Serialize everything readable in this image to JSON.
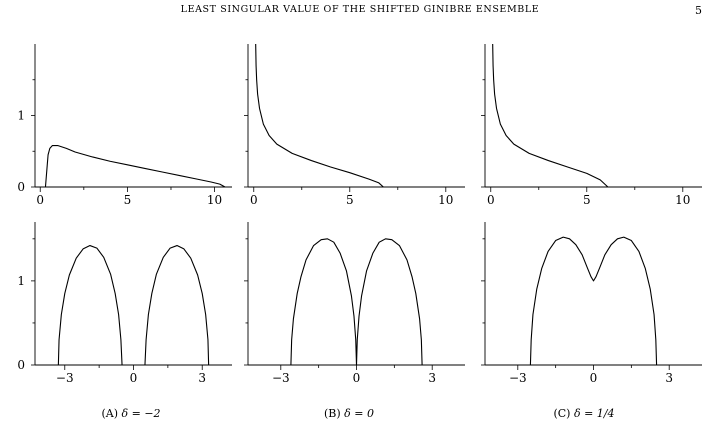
{
  "header": {
    "title": "LEAST SINGULAR VALUE OF THE SHIFTED GINIBRE ENSEMBLE",
    "page_number": "5"
  },
  "panels": [
    {
      "label": "(A)",
      "delta_expr": "δ = −2"
    },
    {
      "label": "(B)",
      "delta_expr": "δ = 0"
    },
    {
      "label": "(C)",
      "delta_expr": "δ = 1/4"
    }
  ],
  "chart_data": [
    {
      "type": "line",
      "row": "top",
      "panel": "A",
      "xlim": [
        -0.3,
        11
      ],
      "ylim": [
        0,
        2
      ],
      "xticks": [
        0,
        5,
        10
      ],
      "yticks": [
        0,
        1
      ],
      "series": [
        {
          "x": [
            0.3,
            0.4,
            0.45,
            0.55,
            0.7,
            1,
            1.5,
            2,
            3,
            4,
            5,
            6,
            7,
            8,
            9,
            9.8,
            10.3,
            10.6
          ],
          "y": [
            0,
            0.3,
            0.45,
            0.54,
            0.58,
            0.58,
            0.54,
            0.49,
            0.42,
            0.36,
            0.31,
            0.26,
            0.21,
            0.16,
            0.11,
            0.07,
            0.04,
            0
          ]
        }
      ]
    },
    {
      "type": "line",
      "row": "top",
      "panel": "B",
      "xlim": [
        -0.3,
        11
      ],
      "ylim": [
        0,
        2
      ],
      "xticks": [
        0,
        5,
        10
      ],
      "yticks": [
        0,
        1
      ],
      "series": [
        {
          "x": [
            0.1,
            0.12,
            0.15,
            0.2,
            0.3,
            0.5,
            0.8,
            1.2,
            2,
            3,
            4,
            5,
            6,
            6.5,
            6.75
          ],
          "y": [
            2,
            1.7,
            1.5,
            1.3,
            1.1,
            0.88,
            0.72,
            0.6,
            0.47,
            0.37,
            0.28,
            0.2,
            0.11,
            0.06,
            0
          ]
        }
      ]
    },
    {
      "type": "line",
      "row": "top",
      "panel": "C",
      "xlim": [
        -0.3,
        11
      ],
      "ylim": [
        0,
        2
      ],
      "xticks": [
        0,
        5,
        10
      ],
      "yticks": [
        0,
        1
      ],
      "series": [
        {
          "x": [
            0.1,
            0.12,
            0.15,
            0.2,
            0.3,
            0.5,
            0.8,
            1.2,
            2,
            3,
            4,
            5,
            5.7,
            6.1
          ],
          "y": [
            2,
            1.7,
            1.5,
            1.3,
            1.1,
            0.88,
            0.72,
            0.6,
            0.47,
            0.37,
            0.28,
            0.19,
            0.1,
            0
          ]
        }
      ]
    },
    {
      "type": "line",
      "row": "bottom",
      "panel": "A",
      "xlim": [
        -4.3,
        4.3
      ],
      "ylim": [
        0,
        1.7
      ],
      "xticks": [
        -3,
        0,
        3
      ],
      "yticks": [
        0,
        1
      ],
      "series": [
        {
          "x": [
            -3.28,
            -3.25,
            -3.15,
            -3.0,
            -2.8,
            -2.5,
            -2.2,
            -1.9,
            -1.6,
            -1.3,
            -1.0,
            -0.8,
            -0.65,
            -0.55,
            -0.5
          ],
          "y": [
            0,
            0.3,
            0.6,
            0.85,
            1.07,
            1.27,
            1.38,
            1.42,
            1.39,
            1.28,
            1.08,
            0.85,
            0.6,
            0.3,
            0
          ]
        },
        {
          "x": [
            0.5,
            0.55,
            0.65,
            0.8,
            1.0,
            1.3,
            1.6,
            1.9,
            2.2,
            2.5,
            2.8,
            3.0,
            3.15,
            3.25,
            3.28
          ],
          "y": [
            0,
            0.3,
            0.6,
            0.85,
            1.08,
            1.28,
            1.39,
            1.42,
            1.38,
            1.27,
            1.07,
            0.85,
            0.6,
            0.3,
            0
          ]
        }
      ]
    },
    {
      "type": "line",
      "row": "bottom",
      "panel": "B",
      "xlim": [
        -4.3,
        4.3
      ],
      "ylim": [
        0,
        1.7
      ],
      "xticks": [
        -3,
        0,
        3
      ],
      "yticks": [
        0,
        1
      ],
      "series": [
        {
          "x": [
            -2.6,
            -2.57,
            -2.5,
            -2.35,
            -2.2,
            -2.0,
            -1.7,
            -1.4,
            -1.15,
            -0.9,
            -0.65,
            -0.4,
            -0.2,
            -0.1,
            -0.03,
            0,
            0.03,
            0.1,
            0.2,
            0.4,
            0.65,
            0.9,
            1.15,
            1.4,
            1.7,
            2.0,
            2.2,
            2.35,
            2.5,
            2.57,
            2.6
          ],
          "y": [
            0,
            0.3,
            0.55,
            0.85,
            1.05,
            1.25,
            1.42,
            1.49,
            1.5,
            1.46,
            1.33,
            1.12,
            0.82,
            0.58,
            0.3,
            0,
            0.3,
            0.58,
            0.82,
            1.12,
            1.33,
            1.46,
            1.5,
            1.49,
            1.42,
            1.25,
            1.05,
            0.85,
            0.55,
            0.3,
            0
          ]
        }
      ]
    },
    {
      "type": "line",
      "row": "bottom",
      "panel": "C",
      "xlim": [
        -4.3,
        4.3
      ],
      "ylim": [
        0,
        1.7
      ],
      "xticks": [
        -3,
        0,
        3
      ],
      "yticks": [
        0,
        1
      ],
      "series": [
        {
          "x": [
            -2.5,
            -2.47,
            -2.4,
            -2.25,
            -2.05,
            -1.8,
            -1.5,
            -1.2,
            -0.95,
            -0.7,
            -0.45,
            -0.25,
            -0.1,
            0,
            0.1,
            0.25,
            0.45,
            0.7,
            0.95,
            1.2,
            1.5,
            1.8,
            2.05,
            2.25,
            2.4,
            2.47,
            2.5
          ],
          "y": [
            0,
            0.3,
            0.6,
            0.9,
            1.15,
            1.35,
            1.48,
            1.52,
            1.5,
            1.43,
            1.31,
            1.16,
            1.05,
            1.0,
            1.05,
            1.16,
            1.31,
            1.43,
            1.5,
            1.52,
            1.48,
            1.35,
            1.15,
            0.9,
            0.6,
            0.3,
            0
          ]
        }
      ]
    }
  ]
}
